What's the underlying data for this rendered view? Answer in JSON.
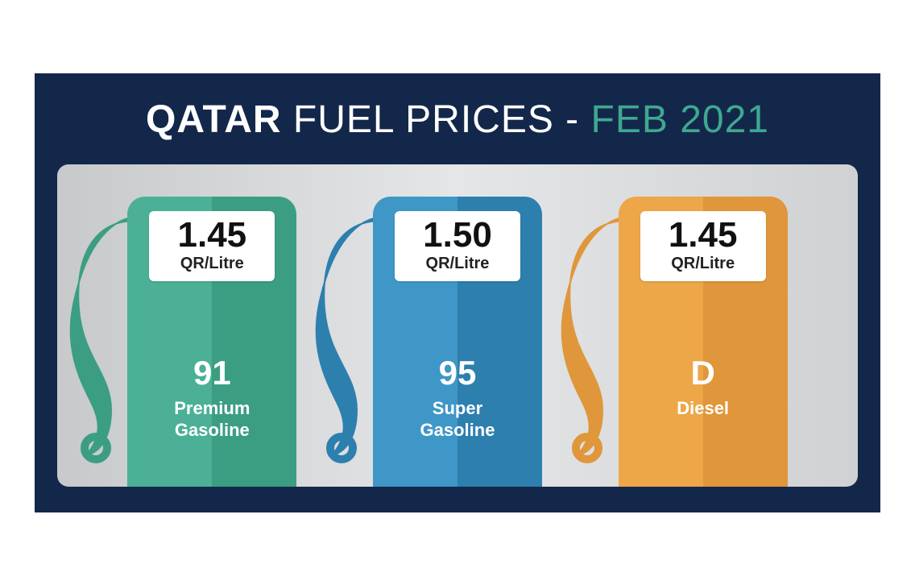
{
  "title": {
    "bold": "QATAR",
    "rest": " FUEL PRICES - ",
    "date": "FEB 2021"
  },
  "panel": {
    "background_gradient": [
      "#c7c9cb",
      "#e4e6e8",
      "#cfd1d3"
    ],
    "outer_background": "#13274b"
  },
  "pumps": [
    {
      "price": "1.45",
      "unit": "QR/Litre",
      "grade": "91",
      "label": "Premium\nGasoline",
      "color_left": "#4bb096",
      "color_right": "#3b9e83",
      "hose_color": "#3b9e83"
    },
    {
      "price": "1.50",
      "unit": "QR/Litre",
      "grade": "95",
      "label": "Super\nGasoline",
      "color_left": "#3e97c7",
      "color_right": "#2d7fae",
      "hose_color": "#2d7fae"
    },
    {
      "price": "1.45",
      "unit": "QR/Litre",
      "grade": "D",
      "label": "Diesel",
      "color_left": "#eda748",
      "color_right": "#e0963a",
      "hose_color": "#e0963a"
    }
  ]
}
